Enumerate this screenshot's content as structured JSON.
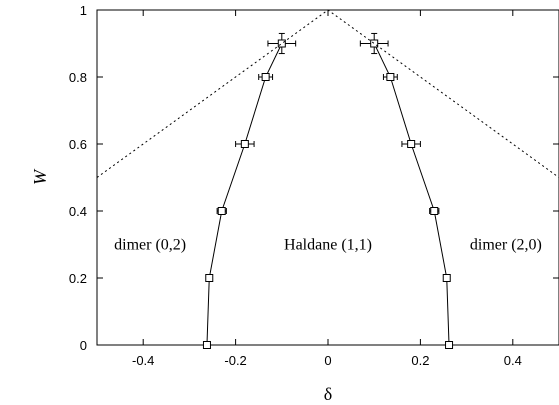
{
  "chart_data": {
    "type": "line",
    "xlabel": "δ",
    "ylabel": "W",
    "xlim": [
      -0.5,
      0.5
    ],
    "ylim": [
      0,
      1
    ],
    "xticks": [
      -0.4,
      -0.2,
      0,
      0.2,
      0.4
    ],
    "xtick_labels": [
      "-0.4",
      "-0.2",
      "0",
      "0.2",
      "0.4"
    ],
    "yticks": [
      0,
      0.2,
      0.4,
      0.6,
      0.8,
      1
    ],
    "ytick_labels": [
      "0",
      "0.2",
      "0.4",
      "0.6",
      "0.8",
      "1"
    ],
    "grid": false,
    "series": [
      {
        "style": "solid-with-square-markers",
        "color": "#000000",
        "points": [
          {
            "x": -0.262,
            "y": 0.0,
            "xerr": 0.0,
            "yerr": 0.0
          },
          {
            "x": -0.257,
            "y": 0.2,
            "xerr": 0.0,
            "yerr": 0.0
          },
          {
            "x": -0.23,
            "y": 0.4,
            "xerr": 0.01,
            "yerr": 0.0
          },
          {
            "x": -0.18,
            "y": 0.6,
            "xerr": 0.02,
            "yerr": 0.0
          },
          {
            "x": -0.135,
            "y": 0.8,
            "xerr": 0.015,
            "yerr": 0.0
          },
          {
            "x": -0.1,
            "y": 0.9,
            "xerr": 0.03,
            "yerr": 0.03
          }
        ]
      },
      {
        "style": "solid-with-square-markers",
        "color": "#000000",
        "points": [
          {
            "x": 0.262,
            "y": 0.0,
            "xerr": 0.0,
            "yerr": 0.0
          },
          {
            "x": 0.257,
            "y": 0.2,
            "xerr": 0.0,
            "yerr": 0.0
          },
          {
            "x": 0.23,
            "y": 0.4,
            "xerr": 0.01,
            "yerr": 0.0
          },
          {
            "x": 0.18,
            "y": 0.6,
            "xerr": 0.02,
            "yerr": 0.0
          },
          {
            "x": 0.135,
            "y": 0.8,
            "xerr": 0.015,
            "yerr": 0.0
          },
          {
            "x": 0.1,
            "y": 0.9,
            "xerr": 0.03,
            "yerr": 0.03
          }
        ]
      },
      {
        "style": "dotted",
        "color": "#000000",
        "points": [
          {
            "x": -0.5,
            "y": 0.5
          },
          {
            "x": 0.0,
            "y": 1.0
          },
          {
            "x": 0.5,
            "y": 0.5
          }
        ]
      }
    ],
    "annotations": [
      {
        "text": "dimer (0,2)",
        "x": -0.385,
        "y": 0.3
      },
      {
        "text": "Haldane (1,1)",
        "x": 0.0,
        "y": 0.3
      },
      {
        "text": "dimer (2,0)",
        "x": 0.385,
        "y": 0.3
      }
    ]
  }
}
